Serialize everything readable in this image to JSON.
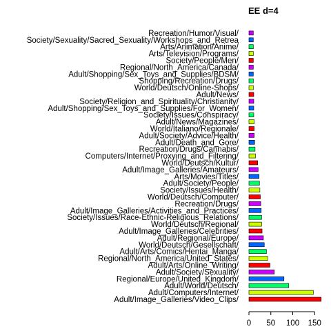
{
  "chart_data": {
    "type": "bar",
    "orientation": "horizontal",
    "title": "EE d=4",
    "xlabel": "",
    "ylabel": "",
    "xlim": [
      0,
      170
    ],
    "xticks": [
      0,
      50,
      100,
      150
    ],
    "grid": false,
    "legend": "none",
    "palette": [
      "#ff0000",
      "#ccff00",
      "#00ff66",
      "#0066ff",
      "#cc00ff"
    ],
    "categories": [
      "Adult/Image_Galleries/Video_Clips/",
      "Adult/Computers/Internet/",
      "Adult/World/Deutsch/",
      "Regional/Europe/United_Kingdom/",
      "Adult/Society/Sexuality/",
      "Adult/Arts/Online_Writing/",
      "Regional/North_America/United_States/",
      "Adult/Arts/Comics/Hentai_Manga/",
      "World/Deutsch/Gesellschaft/",
      "Adult/Regional/Europe/",
      "Adult/Image_Galleries/Celebrities/",
      "World/Deutsch/Regional/",
      "Society/Issues/Race-Ethnic-Religious_Relations/",
      "Adult/Image_Galleries/Activities_and_Practices/",
      "Recreation/Drugs/",
      "World/Deutsch/Computer/",
      "Society/Issues/Health/",
      "Adult/Society/People/",
      "Arts/Movies/Titles/",
      "Adult/Image_Galleries/Amateurs/",
      "World/Deutsch/Kultur/",
      "Computers/Internet/Proxying_and_Filtering/",
      "Recreation/Drugs/Cannabis/",
      "Adult/Death_and_Gore/",
      "Adult/Society/Advice/Health/",
      "World/Italiano/Regionale/",
      "Adult/News/Magazines/",
      "Society/Issues/Conspiracy/",
      "Adult/Shopping/Sex_Toys_and_Supplies/For_Women/",
      "Society/Religion_and_Spirituality/Christianity/",
      "Adult/News/",
      "World/Deutsch/Online-Shops/",
      "Shopping/Recreation/Drugs/",
      "Adult/Shopping/Sex_Toys_and_Supplies/BDSM/",
      "Regional/North_America/Canada/",
      "Society/People/Men/",
      "Arts/Television/Programs/",
      "Arts/Animation/Anime/",
      "Society/Sexuality/Sacred_Sexuality/Workshops_and_Retrea",
      "Recreation/Humor/Visual/"
    ],
    "values": [
      165,
      147,
      91,
      80,
      58,
      48,
      43,
      40,
      35,
      33,
      30,
      29,
      29,
      28,
      27,
      26,
      25,
      24,
      23,
      21,
      20,
      15,
      14,
      13,
      12,
      12,
      12,
      11,
      11,
      11,
      11,
      10,
      10,
      10,
      10,
      10,
      10,
      10,
      10,
      10
    ]
  }
}
